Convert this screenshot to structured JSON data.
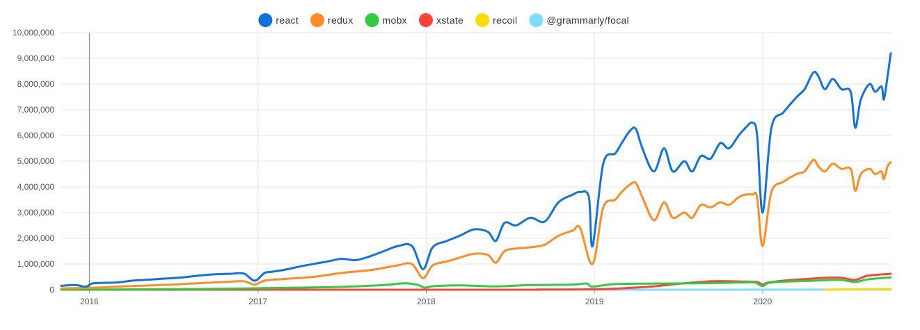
{
  "chart_data": {
    "type": "line",
    "title": "",
    "xlabel": "",
    "ylabel": "",
    "grid": true,
    "legend_position": "top-center",
    "ylim": [
      0,
      10000000
    ],
    "xlim": [
      "2015-11-01",
      "2020-10-05"
    ],
    "y_ticks": [
      0,
      1000000,
      2000000,
      3000000,
      4000000,
      5000000,
      6000000,
      7000000,
      8000000,
      9000000,
      10000000
    ],
    "y_tick_labels": [
      "0",
      "1,000,000",
      "2,000,000",
      "3,000,000",
      "4,000,000",
      "5,000,000",
      "6,000,000",
      "7,000,000",
      "8,000,000",
      "9,000,000",
      "10,000,000"
    ],
    "x_ticks": [
      "2016-01-01",
      "2017-01-01",
      "2018-01-01",
      "2019-01-01",
      "2020-01-01"
    ],
    "x_tick_labels": [
      "2016",
      "2017",
      "2018",
      "2019",
      "2020"
    ],
    "series": [
      {
        "name": "react",
        "color": "#0f73db",
        "points": [
          [
            "2015-11-01",
            150000
          ],
          [
            "2015-12-01",
            180000
          ],
          [
            "2015-12-25",
            120000
          ],
          [
            "2016-01-10",
            250000
          ],
          [
            "2016-03-01",
            280000
          ],
          [
            "2016-04-01",
            350000
          ],
          [
            "2016-05-01",
            380000
          ],
          [
            "2016-06-01",
            420000
          ],
          [
            "2016-07-01",
            450000
          ],
          [
            "2016-08-01",
            500000
          ],
          [
            "2016-09-01",
            560000
          ],
          [
            "2016-10-01",
            600000
          ],
          [
            "2016-11-01",
            620000
          ],
          [
            "2016-12-01",
            630000
          ],
          [
            "2016-12-25",
            350000
          ],
          [
            "2017-01-15",
            650000
          ],
          [
            "2017-02-01",
            700000
          ],
          [
            "2017-03-01",
            780000
          ],
          [
            "2017-04-01",
            900000
          ],
          [
            "2017-05-01",
            1000000
          ],
          [
            "2017-06-01",
            1100000
          ],
          [
            "2017-07-01",
            1200000
          ],
          [
            "2017-08-01",
            1150000
          ],
          [
            "2017-09-01",
            1300000
          ],
          [
            "2017-10-01",
            1500000
          ],
          [
            "2017-11-01",
            1700000
          ],
          [
            "2017-12-01",
            1700000
          ],
          [
            "2017-12-25",
            800000
          ],
          [
            "2018-01-15",
            1650000
          ],
          [
            "2018-02-15",
            1900000
          ],
          [
            "2018-03-15",
            2100000
          ],
          [
            "2018-04-15",
            2350000
          ],
          [
            "2018-05-15",
            2250000
          ],
          [
            "2018-06-01",
            1900000
          ],
          [
            "2018-06-20",
            2600000
          ],
          [
            "2018-07-15",
            2500000
          ],
          [
            "2018-08-15",
            2800000
          ],
          [
            "2018-09-15",
            2650000
          ],
          [
            "2018-10-15",
            3400000
          ],
          [
            "2018-11-15",
            3700000
          ],
          [
            "2018-12-01",
            3800000
          ],
          [
            "2018-12-20",
            3600000
          ],
          [
            "2018-12-28",
            1700000
          ],
          [
            "2019-01-20",
            4900000
          ],
          [
            "2019-02-15",
            5300000
          ],
          [
            "2019-03-01",
            5700000
          ],
          [
            "2019-03-20",
            6200000
          ],
          [
            "2019-04-01",
            6250000
          ],
          [
            "2019-04-15",
            5500000
          ],
          [
            "2019-05-10",
            4600000
          ],
          [
            "2019-06-01",
            5500000
          ],
          [
            "2019-06-20",
            4600000
          ],
          [
            "2019-07-15",
            5000000
          ],
          [
            "2019-08-01",
            4600000
          ],
          [
            "2019-08-20",
            5200000
          ],
          [
            "2019-09-10",
            5100000
          ],
          [
            "2019-10-01",
            5700000
          ],
          [
            "2019-10-20",
            5500000
          ],
          [
            "2019-11-10",
            6000000
          ],
          [
            "2019-11-25",
            6300000
          ],
          [
            "2019-12-10",
            6500000
          ],
          [
            "2019-12-20",
            6000000
          ],
          [
            "2020-01-01",
            3000000
          ],
          [
            "2020-01-20",
            6300000
          ],
          [
            "2020-02-15",
            6900000
          ],
          [
            "2020-03-15",
            7500000
          ],
          [
            "2020-04-01",
            7800000
          ],
          [
            "2020-04-20",
            8450000
          ],
          [
            "2020-05-01",
            8300000
          ],
          [
            "2020-05-15",
            7800000
          ],
          [
            "2020-06-01",
            8200000
          ],
          [
            "2020-06-20",
            7800000
          ],
          [
            "2020-07-10",
            7700000
          ],
          [
            "2020-07-20",
            6300000
          ],
          [
            "2020-08-01",
            7400000
          ],
          [
            "2020-08-20",
            8000000
          ],
          [
            "2020-09-01",
            7700000
          ],
          [
            "2020-09-15",
            7900000
          ],
          [
            "2020-09-20",
            7400000
          ],
          [
            "2020-09-28",
            8300000
          ],
          [
            "2020-10-05",
            9200000
          ]
        ]
      },
      {
        "name": "redux",
        "color": "#fe8c25",
        "points": [
          [
            "2015-11-01",
            50000
          ],
          [
            "2015-12-01",
            60000
          ],
          [
            "2016-01-15",
            80000
          ],
          [
            "2016-03-01",
            120000
          ],
          [
            "2016-05-01",
            160000
          ],
          [
            "2016-07-01",
            200000
          ],
          [
            "2016-09-01",
            260000
          ],
          [
            "2016-11-01",
            310000
          ],
          [
            "2016-12-01",
            330000
          ],
          [
            "2016-12-25",
            200000
          ],
          [
            "2017-01-15",
            350000
          ],
          [
            "2017-03-01",
            420000
          ],
          [
            "2017-05-01",
            500000
          ],
          [
            "2017-07-01",
            650000
          ],
          [
            "2017-09-01",
            760000
          ],
          [
            "2017-10-01",
            850000
          ],
          [
            "2017-11-01",
            950000
          ],
          [
            "2017-12-01",
            1000000
          ],
          [
            "2017-12-25",
            450000
          ],
          [
            "2018-01-15",
            950000
          ],
          [
            "2018-02-15",
            1100000
          ],
          [
            "2018-03-15",
            1250000
          ],
          [
            "2018-04-15",
            1400000
          ],
          [
            "2018-05-15",
            1350000
          ],
          [
            "2018-06-01",
            1050000
          ],
          [
            "2018-06-20",
            1500000
          ],
          [
            "2018-07-15",
            1600000
          ],
          [
            "2018-08-15",
            1650000
          ],
          [
            "2018-09-15",
            1750000
          ],
          [
            "2018-10-15",
            2100000
          ],
          [
            "2018-11-15",
            2300000
          ],
          [
            "2018-12-01",
            2400000
          ],
          [
            "2018-12-28",
            1000000
          ],
          [
            "2019-01-20",
            3200000
          ],
          [
            "2019-02-15",
            3500000
          ],
          [
            "2019-03-01",
            3800000
          ],
          [
            "2019-03-20",
            4100000
          ],
          [
            "2019-04-01",
            4150000
          ],
          [
            "2019-04-15",
            3600000
          ],
          [
            "2019-05-10",
            2700000
          ],
          [
            "2019-06-01",
            3400000
          ],
          [
            "2019-06-20",
            2800000
          ],
          [
            "2019-07-15",
            3000000
          ],
          [
            "2019-08-01",
            2800000
          ],
          [
            "2019-08-20",
            3300000
          ],
          [
            "2019-09-10",
            3200000
          ],
          [
            "2019-10-01",
            3400000
          ],
          [
            "2019-10-20",
            3300000
          ],
          [
            "2019-11-10",
            3600000
          ],
          [
            "2019-11-25",
            3700000
          ],
          [
            "2019-12-10",
            3700000
          ],
          [
            "2019-12-20",
            3600000
          ],
          [
            "2020-01-01",
            1700000
          ],
          [
            "2020-01-20",
            3800000
          ],
          [
            "2020-02-15",
            4200000
          ],
          [
            "2020-03-15",
            4500000
          ],
          [
            "2020-04-01",
            4600000
          ],
          [
            "2020-04-20",
            5050000
          ],
          [
            "2020-05-01",
            4800000
          ],
          [
            "2020-05-15",
            4600000
          ],
          [
            "2020-06-01",
            4900000
          ],
          [
            "2020-06-20",
            4700000
          ],
          [
            "2020-07-10",
            4700000
          ],
          [
            "2020-07-20",
            3850000
          ],
          [
            "2020-08-01",
            4500000
          ],
          [
            "2020-08-20",
            4700000
          ],
          [
            "2020-09-01",
            4500000
          ],
          [
            "2020-09-15",
            4600000
          ],
          [
            "2020-09-20",
            4300000
          ],
          [
            "2020-09-28",
            4800000
          ],
          [
            "2020-10-05",
            4950000
          ]
        ]
      },
      {
        "name": "mobx",
        "color": "#2ecc40",
        "points": [
          [
            "2015-11-01",
            5000
          ],
          [
            "2016-03-01",
            10000
          ],
          [
            "2016-07-01",
            20000
          ],
          [
            "2016-11-01",
            40000
          ],
          [
            "2017-01-15",
            60000
          ],
          [
            "2017-04-01",
            80000
          ],
          [
            "2017-07-01",
            110000
          ],
          [
            "2017-10-01",
            180000
          ],
          [
            "2017-11-15",
            250000
          ],
          [
            "2017-12-15",
            180000
          ],
          [
            "2017-12-28",
            80000
          ],
          [
            "2018-01-20",
            140000
          ],
          [
            "2018-03-15",
            170000
          ],
          [
            "2018-06-01",
            130000
          ],
          [
            "2018-08-15",
            180000
          ],
          [
            "2018-11-15",
            200000
          ],
          [
            "2018-12-15",
            240000
          ],
          [
            "2018-12-28",
            120000
          ],
          [
            "2019-02-15",
            220000
          ],
          [
            "2019-05-15",
            240000
          ],
          [
            "2019-08-15",
            250000
          ],
          [
            "2019-11-15",
            280000
          ],
          [
            "2019-12-15",
            280000
          ],
          [
            "2020-01-01",
            140000
          ],
          [
            "2020-01-20",
            280000
          ],
          [
            "2020-04-15",
            350000
          ],
          [
            "2020-06-15",
            380000
          ],
          [
            "2020-07-20",
            300000
          ],
          [
            "2020-08-15",
            400000
          ],
          [
            "2020-10-05",
            480000
          ]
        ]
      },
      {
        "name": "xstate",
        "color": "#ff4136",
        "points": [
          [
            "2015-11-01",
            0
          ],
          [
            "2018-06-01",
            0
          ],
          [
            "2018-09-01",
            5000
          ],
          [
            "2018-12-01",
            10000
          ],
          [
            "2019-02-01",
            30000
          ],
          [
            "2019-05-01",
            120000
          ],
          [
            "2019-07-15",
            250000
          ],
          [
            "2019-09-15",
            330000
          ],
          [
            "2019-11-15",
            320000
          ],
          [
            "2019-12-20",
            300000
          ],
          [
            "2020-01-01",
            200000
          ],
          [
            "2020-01-20",
            300000
          ],
          [
            "2020-04-15",
            430000
          ],
          [
            "2020-06-15",
            470000
          ],
          [
            "2020-07-20",
            380000
          ],
          [
            "2020-08-15",
            540000
          ],
          [
            "2020-10-05",
            620000
          ]
        ]
      },
      {
        "name": "recoil",
        "color": "#ffdc00",
        "points": [
          [
            "2020-05-15",
            0
          ],
          [
            "2020-06-15",
            10000
          ],
          [
            "2020-08-15",
            20000
          ],
          [
            "2020-10-05",
            30000
          ]
        ]
      },
      {
        "name": "@grammarly/focal",
        "color": "#7fdbff",
        "points": [
          [
            "2015-11-01",
            0
          ],
          [
            "2020-10-05",
            1500
          ]
        ]
      }
    ]
  }
}
